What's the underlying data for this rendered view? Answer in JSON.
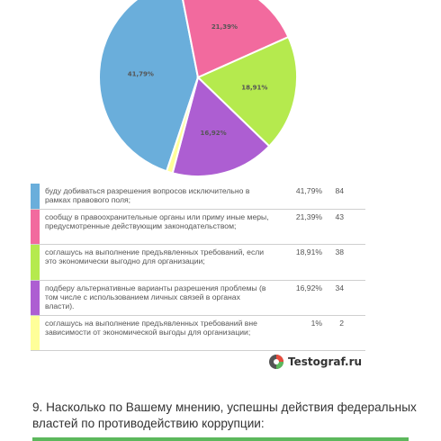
{
  "chart_data": {
    "type": "pie",
    "slices": [
      {
        "label": "буду добиваться разрешения вопросов исключительно в рамках правового поля;",
        "percent": 41.79,
        "percent_label": "41,79%",
        "count": 84,
        "color": "#6aaedb"
      },
      {
        "label": "сообщу в правоохранительные органы или приму иные меры, предусмотренные действующим законодательством;",
        "percent": 21.39,
        "percent_label": "21,39%",
        "count": 43,
        "color": "#f26a9e"
      },
      {
        "label": "соглашусь на выполнение предъявленных требований, если это экономически выгодно для организации;",
        "percent": 18.91,
        "percent_label": "18,91%",
        "count": 38,
        "color": "#b5ea4e"
      },
      {
        "label": "подберу альтернативные варианты разрешения проблемы (в том числе с использованием личных связей в органах власти).",
        "percent": 16.92,
        "percent_label": "16,92%",
        "count": 34,
        "color": "#ad5ed2"
      },
      {
        "label": "соглашусь на выполнение предъявленных требований вне зависимости от экономической выгоды для организации;",
        "percent": 1,
        "percent_label": "1%",
        "count": 2,
        "color": "#ffff99"
      }
    ]
  },
  "brand": {
    "name": "Testograf.ru",
    "icon": "testograf-logo-icon"
  },
  "question": {
    "text": "9. Насколько по Вашему мнению, успешны действия федеральных властей по противодействию коррупции:"
  },
  "colors": {
    "bottom_bar": "#5cb85c"
  }
}
